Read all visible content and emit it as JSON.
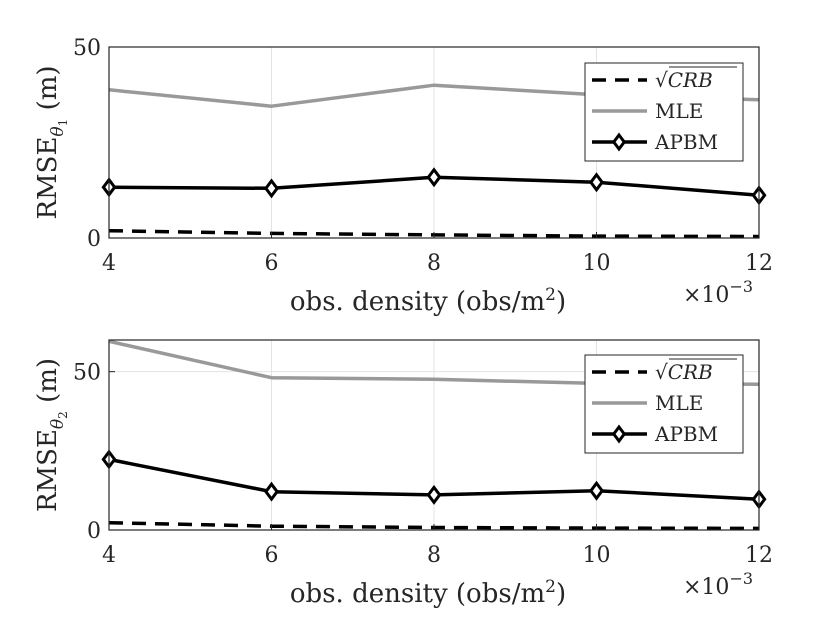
{
  "chart_data": [
    {
      "type": "line",
      "x": [
        4,
        6,
        8,
        10,
        12
      ],
      "xlim": [
        4,
        12
      ],
      "ylim": [
        0,
        50
      ],
      "xticks": [
        "4",
        "6",
        "8",
        "10",
        "12"
      ],
      "yticks": [
        "0",
        "50"
      ],
      "ytick_values": [
        0,
        50
      ],
      "x_multiplier": "×10",
      "x_multiplier_exp": "−3",
      "xlabel": "obs. density (obs/m",
      "xlabel_sup": "2",
      "xlabel_end": ")",
      "ylabel": "RMSE",
      "ylabel_sub": "θ",
      "ylabel_subsub": "1",
      "ylabel_end": " (m)",
      "grid": true,
      "legend_position": "top-right",
      "series": [
        {
          "name": "√CRB",
          "style": "dashed",
          "color": "#000000",
          "values": [
            1.9,
            1.2,
            0.8,
            0.5,
            0.4
          ]
        },
        {
          "name": "MLE",
          "style": "solid",
          "color": "#999999",
          "values": [
            38.8,
            34.5,
            40.0,
            37.5,
            36.2
          ]
        },
        {
          "name": "APBM",
          "style": "solid-diamond",
          "color": "#000000",
          "values": [
            13.3,
            13.0,
            15.9,
            14.6,
            11.2
          ]
        }
      ]
    },
    {
      "type": "line",
      "x": [
        4,
        6,
        8,
        10,
        12
      ],
      "xlim": [
        4,
        12
      ],
      "ylim": [
        0,
        60
      ],
      "xticks": [
        "4",
        "6",
        "8",
        "10",
        "12"
      ],
      "yticks": [
        "0",
        "50"
      ],
      "ytick_values": [
        0,
        50
      ],
      "x_multiplier": "×10",
      "x_multiplier_exp": "−3",
      "xlabel": "obs. density (obs/m",
      "xlabel_sup": "2",
      "xlabel_end": ")",
      "ylabel": "RMSE",
      "ylabel_sub": "θ",
      "ylabel_subsub": "2",
      "ylabel_end": " (m)",
      "grid": true,
      "legend_position": "top-right",
      "series": [
        {
          "name": "√CRB",
          "style": "dashed",
          "color": "#000000",
          "values": [
            2.3,
            1.2,
            0.8,
            0.6,
            0.5
          ]
        },
        {
          "name": "MLE",
          "style": "solid",
          "color": "#999999",
          "values": [
            59.6,
            48.1,
            47.6,
            46.3,
            46.0
          ]
        },
        {
          "name": "APBM",
          "style": "solid-diamond",
          "color": "#000000",
          "values": [
            22.3,
            12.1,
            11.1,
            12.4,
            9.7
          ]
        }
      ]
    }
  ]
}
